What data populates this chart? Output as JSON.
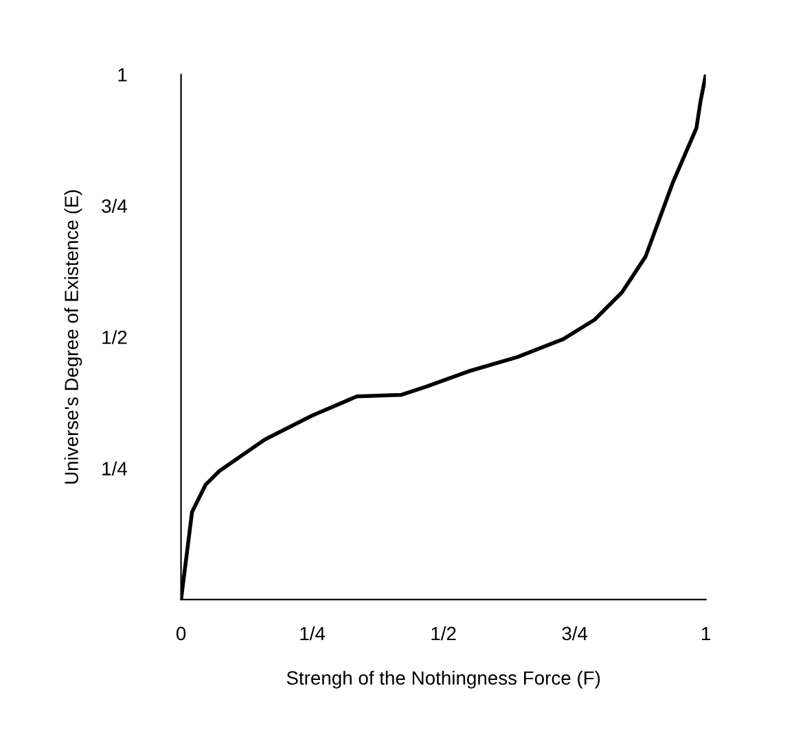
{
  "chart_data": {
    "type": "line",
    "xlabel": "Strengh of the Nothingness Force (F)",
    "ylabel": "Universe's Degree of Existence (E)",
    "xlim": [
      0,
      1
    ],
    "ylim": [
      0,
      1
    ],
    "xticks": [
      {
        "value": 0,
        "label": "0"
      },
      {
        "value": 0.25,
        "label": "1/4"
      },
      {
        "value": 0.5,
        "label": "1/2"
      },
      {
        "value": 0.75,
        "label": "3/4"
      },
      1
    ],
    "yticks": [
      {
        "value": 0,
        "label": null
      },
      {
        "value": 0.25,
        "label": "1/4"
      },
      {
        "value": 0.5,
        "label": "1/2"
      },
      {
        "value": 0.75,
        "label": "3/4"
      },
      1
    ],
    "grid": false,
    "legend": false,
    "marker": "none",
    "line_style": "solid",
    "series": [
      {
        "color": "#000000",
        "x": [
          0,
          0.021,
          0.047,
          0.073,
          0.16,
          0.249,
          0.335,
          0.42,
          0.466,
          0.552,
          0.641,
          0.728,
          0.788,
          0.84,
          0.885,
          0.937,
          0.982,
          0.99,
          1
        ],
        "values": [
          0,
          0.167,
          0.219,
          0.245,
          0.305,
          0.35,
          0.387,
          0.39,
          0.405,
          0.436,
          0.462,
          0.496,
          0.533,
          0.585,
          0.653,
          0.794,
          0.898,
          0.95,
          1
        ]
      }
    ]
  }
}
